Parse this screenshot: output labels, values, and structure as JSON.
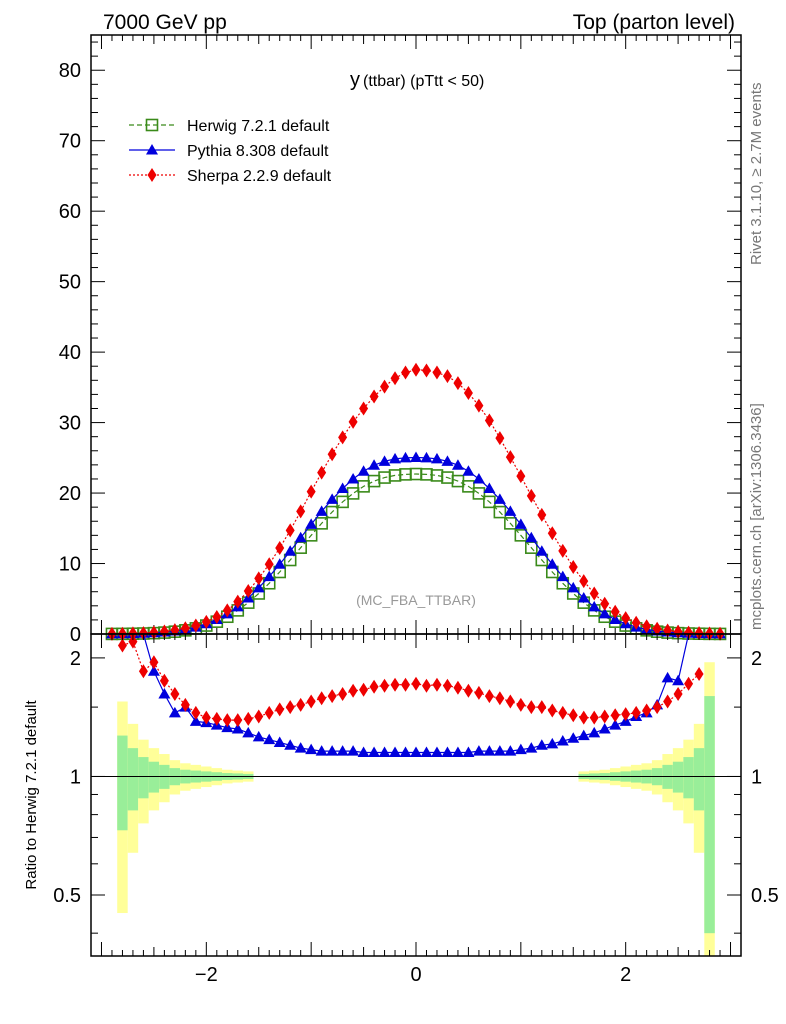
{
  "header": {
    "left": "7000 GeV pp",
    "right": "Top (parton level)"
  },
  "side_labels": {
    "rivet": "Rivet 3.1.10, ≥ 2.7M events",
    "mcplots": "mcplots.cern.ch [arXiv:1306.3436]"
  },
  "chart_data": [
    {
      "type": "line",
      "title_main": "y",
      "title_sub": "(ttbar)  (pTtt < 50)",
      "annotation": "(MC_FBA_TTBAR)",
      "xlim": [
        -3.1,
        3.1
      ],
      "ylim": [
        0,
        85
      ],
      "yticks": [
        0,
        10,
        20,
        30,
        40,
        50,
        60,
        70,
        80
      ],
      "xticks": [
        -2,
        0,
        2
      ],
      "legend_position": "top-left",
      "grid": false,
      "colors": {
        "herwig": "#3a8a1a",
        "pythia": "#0000dd",
        "sherpa": "#ee0000"
      },
      "x": [
        -2.9,
        -2.8,
        -2.7,
        -2.6,
        -2.5,
        -2.4,
        -2.3,
        -2.2,
        -2.1,
        -2.0,
        -1.9,
        -1.8,
        -1.7,
        -1.6,
        -1.5,
        -1.4,
        -1.3,
        -1.2,
        -1.1,
        -1.0,
        -0.9,
        -0.8,
        -0.7,
        -0.6,
        -0.5,
        -0.4,
        -0.3,
        -0.2,
        -0.1,
        0.0,
        0.1,
        0.2,
        0.3,
        0.4,
        0.5,
        0.6,
        0.7,
        0.8,
        0.9,
        1.0,
        1.1,
        1.2,
        1.3,
        1.4,
        1.5,
        1.6,
        1.7,
        1.8,
        1.9,
        2.0,
        2.1,
        2.2,
        2.3,
        2.4,
        2.5,
        2.6,
        2.7,
        2.8,
        2.9
      ],
      "series": [
        {
          "name": "Herwig 7.2.1 default",
          "key": "herwig",
          "values": [
            0.01,
            0.02,
            0.04,
            0.07,
            0.12,
            0.2,
            0.33,
            0.52,
            0.8,
            1.2,
            1.75,
            2.45,
            3.35,
            4.45,
            5.75,
            7.2,
            8.8,
            10.5,
            12.25,
            14.0,
            15.7,
            17.3,
            18.75,
            19.95,
            20.95,
            21.7,
            22.2,
            22.5,
            22.65,
            22.7,
            22.65,
            22.5,
            22.2,
            21.7,
            20.95,
            19.95,
            18.75,
            17.3,
            15.7,
            14.0,
            12.25,
            10.5,
            8.8,
            7.2,
            5.75,
            4.45,
            3.35,
            2.45,
            1.75,
            1.2,
            0.8,
            0.52,
            0.33,
            0.2,
            0.12,
            0.07,
            0.04,
            0.02,
            0.01
          ]
        },
        {
          "name": "Pythia 8.308 default",
          "key": "pythia",
          "values": [
            0.01,
            0.03,
            0.06,
            0.1,
            0.17,
            0.28,
            0.43,
            0.65,
            0.98,
            1.45,
            2.05,
            2.85,
            3.85,
            5.1,
            6.55,
            8.15,
            9.9,
            11.75,
            13.65,
            15.55,
            17.4,
            19.1,
            20.65,
            22.0,
            23.1,
            23.95,
            24.5,
            24.85,
            25.0,
            25.05,
            25.0,
            24.85,
            24.5,
            23.95,
            23.1,
            22.0,
            20.65,
            19.1,
            17.4,
            15.55,
            13.65,
            11.75,
            9.9,
            8.15,
            6.55,
            5.1,
            3.85,
            2.85,
            2.05,
            1.45,
            0.98,
            0.65,
            0.43,
            0.28,
            0.17,
            0.1,
            0.06,
            0.03,
            0.01
          ]
        },
        {
          "name": "Sherpa 2.2.9 default",
          "key": "sherpa",
          "values": [
            0.02,
            0.04,
            0.08,
            0.13,
            0.22,
            0.36,
            0.55,
            0.82,
            1.2,
            1.72,
            2.42,
            3.35,
            4.6,
            6.1,
            7.9,
            9.9,
            12.2,
            14.7,
            17.4,
            20.2,
            22.9,
            25.5,
            27.9,
            30.1,
            32.0,
            33.7,
            35.1,
            36.3,
            37.1,
            37.5,
            37.4,
            37.1,
            36.6,
            35.6,
            34.2,
            32.4,
            30.3,
            27.8,
            25.1,
            22.4,
            19.6,
            16.9,
            14.3,
            11.8,
            9.5,
            7.5,
            5.75,
            4.3,
            3.15,
            2.25,
            1.6,
            1.1,
            0.75,
            0.5,
            0.32,
            0.2,
            0.12,
            0.07,
            0.04
          ]
        }
      ]
    },
    {
      "type": "line",
      "ylabel": "Ratio to Herwig 7.2.1 default",
      "xlim": [
        -3.1,
        3.1
      ],
      "ylim": [
        0.35,
        2.3
      ],
      "log_scale": true,
      "yticks": [
        0.5,
        1,
        2
      ],
      "xticks": [
        -2,
        0,
        2
      ],
      "band_colors": {
        "inner": "#99ee99",
        "outer": "#ffff99"
      },
      "band_x": [
        -2.8,
        -2.7,
        -2.6,
        -2.5,
        -2.4,
        -2.3,
        -2.2,
        -2.1,
        -2.0,
        -1.9,
        -1.8,
        -1.7,
        -1.6,
        1.6,
        1.7,
        1.8,
        1.9,
        2.0,
        2.1,
        2.2,
        2.3,
        2.4,
        2.5,
        2.6,
        2.7,
        2.8
      ],
      "band_inner": [
        0.27,
        0.18,
        0.12,
        0.09,
        0.07,
        0.05,
        0.04,
        0.035,
        0.03,
        0.025,
        0.02,
        0.018,
        0.015,
        0.015,
        0.018,
        0.02,
        0.025,
        0.03,
        0.035,
        0.04,
        0.05,
        0.07,
        0.09,
        0.12,
        0.18,
        0.6
      ],
      "band_outer": [
        0.55,
        0.36,
        0.24,
        0.18,
        0.14,
        0.1,
        0.08,
        0.07,
        0.06,
        0.05,
        0.04,
        0.035,
        0.03,
        0.03,
        0.035,
        0.04,
        0.05,
        0.06,
        0.07,
        0.08,
        0.1,
        0.14,
        0.18,
        0.24,
        0.36,
        0.95
      ],
      "series": [
        {
          "name": "Pythia 8.308 default",
          "key": "pythia",
          "x": [
            -2.6,
            -2.5,
            -2.4,
            -2.3,
            -2.2,
            -2.1,
            -2.0,
            -1.9,
            -1.8,
            -1.7,
            -1.6,
            -1.5,
            -1.4,
            -1.3,
            -1.2,
            -1.1,
            -1.0,
            -0.9,
            -0.8,
            -0.7,
            -0.6,
            -0.5,
            -0.4,
            -0.3,
            -0.2,
            -0.1,
            0.0,
            0.1,
            0.2,
            0.3,
            0.4,
            0.5,
            0.6,
            0.7,
            0.8,
            0.9,
            1.0,
            1.1,
            1.2,
            1.3,
            1.4,
            1.5,
            1.6,
            1.7,
            1.8,
            1.9,
            2.0,
            2.1,
            2.2,
            2.3,
            2.4,
            2.5,
            2.6
          ],
          "values": [
            2.4,
            1.85,
            1.62,
            1.45,
            1.5,
            1.38,
            1.37,
            1.35,
            1.33,
            1.32,
            1.29,
            1.26,
            1.24,
            1.22,
            1.2,
            1.18,
            1.17,
            1.16,
            1.16,
            1.16,
            1.16,
            1.15,
            1.15,
            1.15,
            1.15,
            1.15,
            1.15,
            1.15,
            1.15,
            1.15,
            1.15,
            1.15,
            1.16,
            1.16,
            1.16,
            1.16,
            1.17,
            1.18,
            1.2,
            1.21,
            1.23,
            1.25,
            1.27,
            1.29,
            1.32,
            1.35,
            1.38,
            1.42,
            1.45,
            1.52,
            1.78,
            1.75,
            2.4
          ]
        },
        {
          "name": "Sherpa 2.2.9 default",
          "key": "sherpa",
          "x": [
            -2.8,
            -2.7,
            -2.6,
            -2.5,
            -2.4,
            -2.3,
            -2.2,
            -2.1,
            -2.0,
            -1.9,
            -1.8,
            -1.7,
            -1.6,
            -1.5,
            -1.4,
            -1.3,
            -1.2,
            -1.1,
            -1.0,
            -0.9,
            -0.8,
            -0.7,
            -0.6,
            -0.5,
            -0.4,
            -0.3,
            -0.2,
            -0.1,
            0.0,
            0.1,
            0.2,
            0.3,
            0.4,
            0.5,
            0.6,
            0.7,
            0.8,
            0.9,
            1.0,
            1.1,
            1.2,
            1.3,
            1.4,
            1.5,
            1.6,
            1.7,
            1.8,
            1.9,
            2.0,
            2.1,
            2.2,
            2.3,
            2.4,
            2.5,
            2.6,
            2.7
          ],
          "values": [
            2.15,
            2.2,
            1.85,
            1.95,
            1.75,
            1.62,
            1.52,
            1.45,
            1.41,
            1.4,
            1.39,
            1.39,
            1.4,
            1.42,
            1.45,
            1.48,
            1.5,
            1.52,
            1.55,
            1.58,
            1.6,
            1.62,
            1.65,
            1.66,
            1.69,
            1.7,
            1.71,
            1.71,
            1.72,
            1.7,
            1.71,
            1.7,
            1.68,
            1.65,
            1.63,
            1.6,
            1.58,
            1.55,
            1.52,
            1.5,
            1.5,
            1.47,
            1.45,
            1.43,
            1.41,
            1.41,
            1.42,
            1.43,
            1.44,
            1.45,
            1.47,
            1.5,
            1.55,
            1.62,
            1.72,
            1.82
          ]
        }
      ]
    }
  ]
}
